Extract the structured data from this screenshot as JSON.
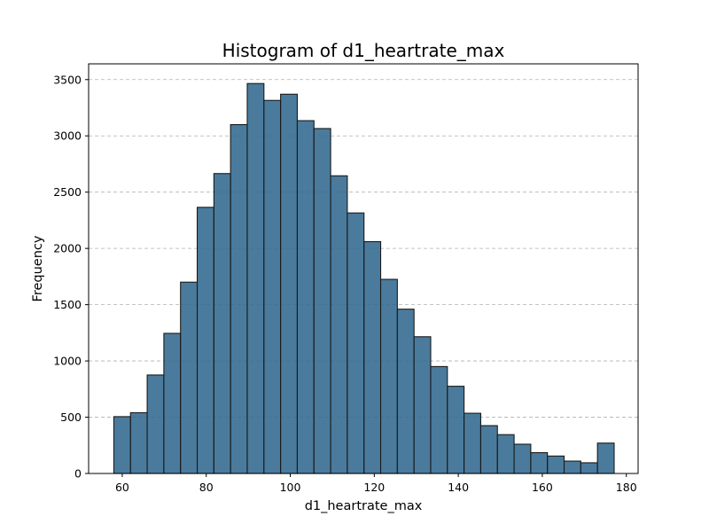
{
  "chart_data": {
    "type": "bar",
    "title": "Histogram of d1_heartrate_max",
    "xlabel": "d1_heartrate_max",
    "ylabel": "Frequency",
    "xlim": [
      52.0,
      182.8
    ],
    "ylim": [
      0,
      3640
    ],
    "xticks": [
      60,
      80,
      100,
      120,
      140,
      160,
      180
    ],
    "yticks": [
      0,
      500,
      1000,
      1500,
      2000,
      2500,
      3000,
      3500
    ],
    "grid": "y-dashed",
    "bin_start": 58,
    "bin_width": 3.97,
    "values": [
      505,
      540,
      875,
      1245,
      1700,
      2365,
      2665,
      3100,
      3465,
      3315,
      3370,
      3135,
      3065,
      2645,
      2315,
      2060,
      1725,
      1460,
      1215,
      950,
      775,
      535,
      425,
      345,
      260,
      185,
      155,
      110,
      95,
      270
    ],
    "color": "#31698f"
  }
}
